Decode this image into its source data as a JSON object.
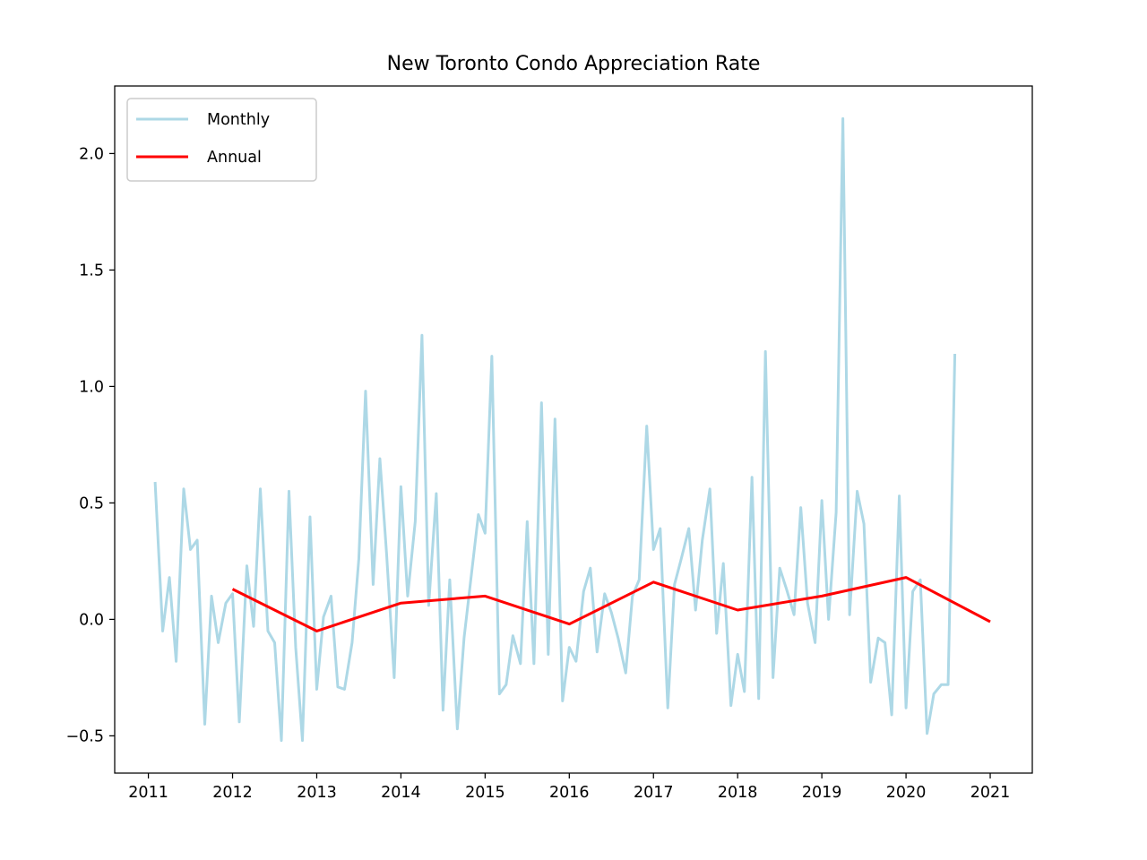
{
  "chart_data": {
    "type": "line",
    "title": "New Toronto Condo Appreciation Rate",
    "xlabel": "",
    "ylabel": "",
    "xlim": [
      2010.6,
      2021.5
    ],
    "ylim": [
      -0.66,
      2.29
    ],
    "grid": false,
    "legend_position": "top-left",
    "x_ticks": [
      {
        "value": 2011,
        "label": "2011"
      },
      {
        "value": 2012,
        "label": "2012"
      },
      {
        "value": 2013,
        "label": "2013"
      },
      {
        "value": 2014,
        "label": "2014"
      },
      {
        "value": 2015,
        "label": "2015"
      },
      {
        "value": 2016,
        "label": "2016"
      },
      {
        "value": 2017,
        "label": "2017"
      },
      {
        "value": 2018,
        "label": "2018"
      },
      {
        "value": 2019,
        "label": "2019"
      },
      {
        "value": 2020,
        "label": "2020"
      },
      {
        "value": 2021,
        "label": "2021"
      }
    ],
    "y_ticks": [
      {
        "value": -0.5,
        "label": "−0.5"
      },
      {
        "value": 0.0,
        "label": "0.0"
      },
      {
        "value": 0.5,
        "label": "0.5"
      },
      {
        "value": 1.0,
        "label": "1.0"
      },
      {
        "value": 1.5,
        "label": "1.5"
      },
      {
        "value": 2.0,
        "label": "2.0"
      }
    ],
    "series": [
      {
        "name": "Monthly",
        "color": "#add8e6",
        "x": [
          2011.08,
          2011.17,
          2011.25,
          2011.33,
          2011.42,
          2011.5,
          2011.58,
          2011.67,
          2011.75,
          2011.83,
          2011.92,
          2012.0,
          2012.08,
          2012.17,
          2012.25,
          2012.33,
          2012.42,
          2012.5,
          2012.58,
          2012.67,
          2012.75,
          2012.83,
          2012.92,
          2013.0,
          2013.08,
          2013.17,
          2013.25,
          2013.33,
          2013.42,
          2013.5,
          2013.58,
          2013.67,
          2013.75,
          2013.83,
          2013.92,
          2014.0,
          2014.08,
          2014.17,
          2014.25,
          2014.33,
          2014.42,
          2014.5,
          2014.58,
          2014.67,
          2014.75,
          2014.83,
          2014.92,
          2015.0,
          2015.08,
          2015.17,
          2015.25,
          2015.33,
          2015.42,
          2015.5,
          2015.58,
          2015.67,
          2015.75,
          2015.83,
          2015.92,
          2016.0,
          2016.08,
          2016.17,
          2016.25,
          2016.33,
          2016.42,
          2016.5,
          2016.58,
          2016.67,
          2016.75,
          2016.83,
          2016.92,
          2017.0,
          2017.08,
          2017.17,
          2017.25,
          2017.33,
          2017.42,
          2017.5,
          2017.58,
          2017.67,
          2017.75,
          2017.83,
          2017.92,
          2018.0,
          2018.08,
          2018.17,
          2018.25,
          2018.33,
          2018.42,
          2018.5,
          2018.58,
          2018.67,
          2018.75,
          2018.83,
          2018.92,
          2019.0,
          2019.08,
          2019.17,
          2019.25,
          2019.33,
          2019.42,
          2019.5,
          2019.58,
          2019.67,
          2019.75,
          2019.83,
          2019.92,
          2020.0,
          2020.08,
          2020.17,
          2020.25,
          2020.33,
          2020.42,
          2020.5,
          2020.58
        ],
        "values": [
          0.59,
          -0.05,
          0.18,
          -0.18,
          0.56,
          0.3,
          0.34,
          -0.45,
          0.1,
          -0.1,
          0.07,
          0.11,
          -0.44,
          0.23,
          -0.03,
          0.56,
          -0.05,
          -0.1,
          -0.52,
          0.55,
          -0.12,
          -0.52,
          0.44,
          -0.3,
          0.01,
          0.1,
          -0.29,
          -0.3,
          -0.1,
          0.26,
          0.98,
          0.15,
          0.69,
          0.28,
          -0.25,
          0.57,
          0.1,
          0.42,
          1.22,
          0.06,
          0.54,
          -0.39,
          0.17,
          -0.47,
          -0.08,
          0.17,
          0.45,
          0.37,
          1.13,
          -0.32,
          -0.28,
          -0.07,
          -0.19,
          0.42,
          -0.19,
          0.93,
          -0.15,
          0.86,
          -0.35,
          -0.12,
          -0.18,
          0.12,
          0.22,
          -0.14,
          0.11,
          0.03,
          -0.08,
          -0.23,
          0.1,
          0.17,
          0.83,
          0.3,
          0.39,
          -0.38,
          0.15,
          0.26,
          0.39,
          0.04,
          0.34,
          0.56,
          -0.06,
          0.24,
          -0.37,
          -0.15,
          -0.31,
          0.61,
          -0.34,
          1.15,
          -0.25,
          0.22,
          0.13,
          0.02,
          0.48,
          0.07,
          -0.1,
          0.51,
          0.0,
          0.46,
          2.15,
          0.02,
          0.55,
          0.41,
          -0.27,
          -0.08,
          -0.1,
          -0.41,
          0.53,
          -0.38,
          0.12,
          0.17,
          -0.49,
          -0.32,
          -0.28,
          -0.28,
          1.14
        ]
      },
      {
        "name": "Annual",
        "color": "#ff0000",
        "x": [
          2012,
          2013,
          2014,
          2015,
          2016,
          2017,
          2018,
          2019,
          2020,
          2021
        ],
        "values": [
          0.13,
          -0.05,
          0.07,
          0.1,
          -0.02,
          0.16,
          0.04,
          0.1,
          0.18,
          -0.01
        ]
      }
    ]
  }
}
